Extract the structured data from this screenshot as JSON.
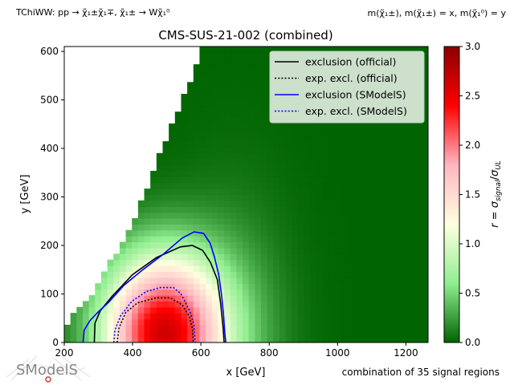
{
  "header": {
    "process": "TChiWW: pp → χ̃₁±χ̃₁∓, χ̃₁± → Wχ̃₁⁰",
    "mass_note": "m(χ̃₁±), m(χ̃₁±) = x, m(χ̃₁⁰) = y"
  },
  "footer": {
    "signal_regions": "combination of 35 signal regions"
  },
  "logo": {
    "text": "SModelS"
  },
  "chart_data": {
    "type": "heatmap",
    "title": "CMS-SUS-21-002 (combined)",
    "xlabel": "x [GeV]",
    "ylabel": "y [GeV]",
    "colorbar_label": "r = σ_signal/σ_UL",
    "xlim": [
      200,
      1265
    ],
    "ylim": [
      0,
      610
    ],
    "clim": [
      0,
      3.0
    ],
    "xticks": [
      200,
      400,
      600,
      800,
      1000,
      1200
    ],
    "yticks": [
      0,
      100,
      200,
      300,
      400,
      500,
      600
    ],
    "cticks": [
      "0.0",
      "0.5",
      "1.0",
      "1.5",
      "2.0",
      "2.5",
      "3.0"
    ],
    "colormap": [
      "#006400",
      "#90ee90",
      "#ffffe0",
      "#ffb6c1",
      "#ff0000",
      "#8b0000"
    ],
    "grid": false,
    "legend": {
      "placement": "top-right",
      "entries": [
        {
          "name": "exclusion (official)",
          "color": "#000000",
          "style": "solid"
        },
        {
          "name": "exp. excl. (official)",
          "color": "#000000",
          "style": "dotted"
        },
        {
          "name": "exclusion (SModelS)",
          "color": "#0000ff",
          "style": "solid"
        },
        {
          "name": "exp. excl. (SModelS)",
          "color": "#0000ff",
          "style": "dotted"
        }
      ]
    },
    "heatmap_model": {
      "diagonal_boundary": [
        [
          200,
          35
        ],
        [
          285,
          100
        ],
        [
          400,
          250
        ],
        [
          500,
          420
        ],
        [
          580,
          560
        ],
        [
          600,
          605
        ]
      ],
      "peak": {
        "x": 490,
        "y": 20,
        "r": 2.6
      }
    },
    "series": [
      {
        "name": "exclusion (official)",
        "points": [
          [
            288,
            0
          ],
          [
            290,
            40
          ],
          [
            305,
            65
          ],
          [
            340,
            95
          ],
          [
            400,
            140
          ],
          [
            470,
            175
          ],
          [
            540,
            197
          ],
          [
            575,
            200
          ],
          [
            605,
            190
          ],
          [
            628,
            165
          ],
          [
            648,
            130
          ],
          [
            658,
            80
          ],
          [
            665,
            30
          ],
          [
            668,
            0
          ]
        ]
      },
      {
        "name": "exp. excl. (official)",
        "points": [
          [
            355,
            0
          ],
          [
            360,
            30
          ],
          [
            380,
            62
          ],
          [
            415,
            82
          ],
          [
            470,
            92
          ],
          [
            510,
            92
          ],
          [
            545,
            78
          ],
          [
            565,
            55
          ],
          [
            575,
            30
          ],
          [
            578,
            0
          ]
        ]
      },
      {
        "name": "exclusion (SModelS)",
        "points": [
          [
            255,
            0
          ],
          [
            258,
            25
          ],
          [
            275,
            45
          ],
          [
            298,
            62
          ],
          [
            330,
            83
          ],
          [
            375,
            118
          ],
          [
            430,
            150
          ],
          [
            490,
            182
          ],
          [
            545,
            215
          ],
          [
            580,
            228
          ],
          [
            608,
            225
          ],
          [
            627,
            205
          ],
          [
            640,
            175
          ],
          [
            652,
            140
          ],
          [
            660,
            100
          ],
          [
            666,
            60
          ],
          [
            670,
            20
          ],
          [
            673,
            0
          ]
        ]
      },
      {
        "name": "exp. excl. (SModelS)",
        "points": [
          [
            345,
            0
          ],
          [
            348,
            25
          ],
          [
            365,
            55
          ],
          [
            398,
            85
          ],
          [
            440,
            105
          ],
          [
            480,
            113
          ],
          [
            520,
            113
          ],
          [
            542,
            100
          ],
          [
            555,
            82
          ],
          [
            570,
            60
          ],
          [
            580,
            35
          ],
          [
            583,
            0
          ]
        ]
      }
    ]
  }
}
